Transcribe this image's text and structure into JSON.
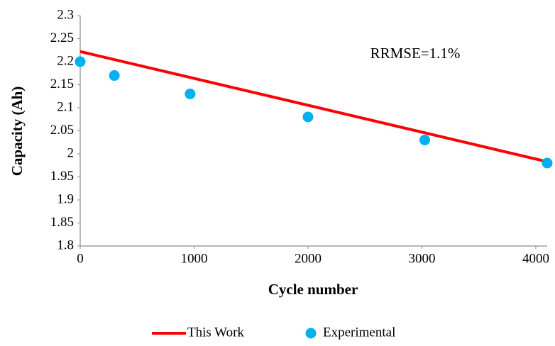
{
  "chart_data": {
    "type": "scatter",
    "xlabel": "Cycle number",
    "ylabel": "Capacity (Ah)",
    "annotation": "RRMSE=1.1%",
    "xlim": [
      0,
      4100
    ],
    "xticks": [
      0,
      1000,
      2000,
      3000,
      4000
    ],
    "ylim": [
      1.8,
      2.3
    ],
    "yticks": [
      2.3,
      2.25,
      2.2,
      2.15,
      2.1,
      2.05,
      2,
      1.95,
      1.9,
      1.85,
      1.8
    ],
    "series": [
      {
        "name": "This Work",
        "type": "line",
        "color": "#ff0000",
        "x": [
          0,
          4100
        ],
        "values": [
          2.222,
          1.983
        ]
      },
      {
        "name": "Experimental",
        "type": "scatter",
        "color": "#00b0f0",
        "x": [
          0,
          300,
          965,
          2000,
          3025,
          4100
        ],
        "values": [
          2.2,
          2.17,
          2.13,
          2.08,
          2.03,
          1.98
        ]
      }
    ]
  }
}
